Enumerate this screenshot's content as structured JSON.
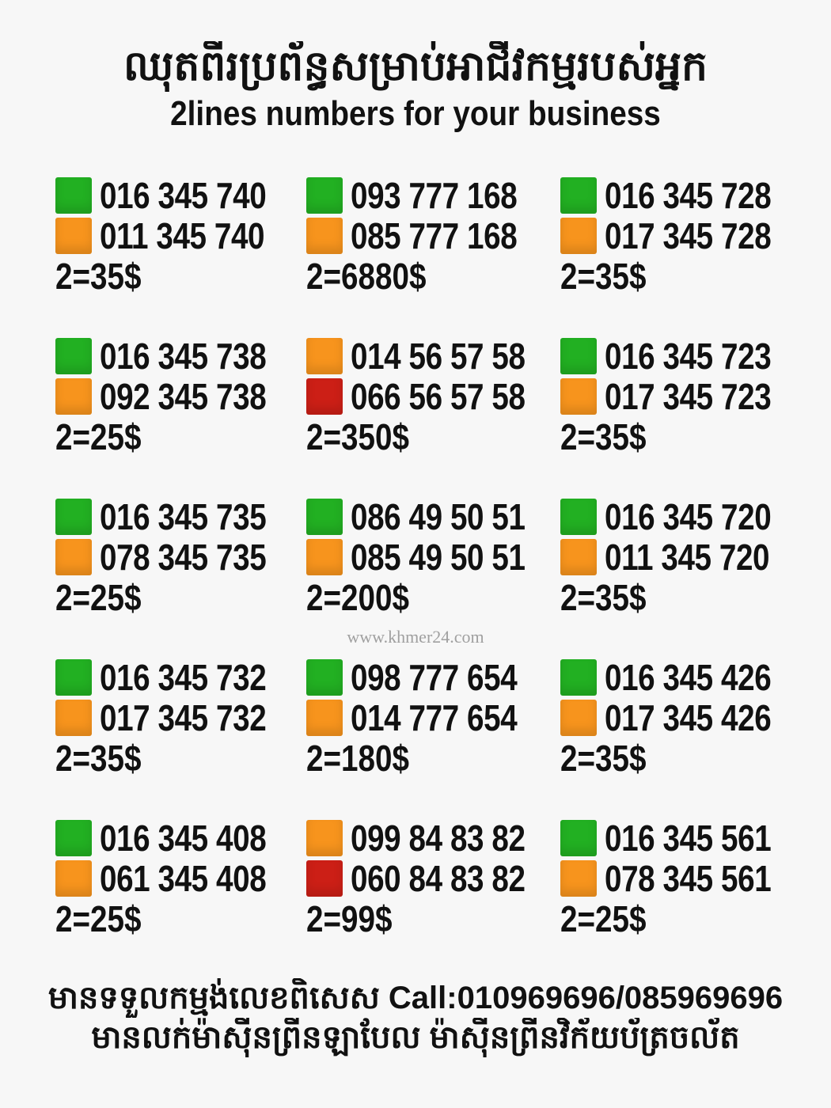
{
  "header": {
    "title_khmer": "ឈុតពីរប្រព័ន្ធសម្រាប់អាជីវកម្មរបស់អ្នក",
    "title_english": "2lines numbers for your business"
  },
  "colors": {
    "green": "#22b022",
    "orange": "#f7941d",
    "red": "#cc1f16"
  },
  "blocks": [
    {
      "lines": [
        {
          "color": "green",
          "number": "016 345 740"
        },
        {
          "color": "orange",
          "number": "011 345 740"
        }
      ],
      "price": "2=35$"
    },
    {
      "lines": [
        {
          "color": "green",
          "number": "093 777 168"
        },
        {
          "color": "orange",
          "number": "085 777 168"
        }
      ],
      "price": "2=6880$"
    },
    {
      "lines": [
        {
          "color": "green",
          "number": "016 345 728"
        },
        {
          "color": "orange",
          "number": "017 345 728"
        }
      ],
      "price": "2=35$"
    },
    {
      "lines": [
        {
          "color": "green",
          "number": "016 345 738"
        },
        {
          "color": "orange",
          "number": "092 345 738"
        }
      ],
      "price": "2=25$"
    },
    {
      "lines": [
        {
          "color": "orange",
          "number": "014 56 57 58"
        },
        {
          "color": "red",
          "number": "066 56 57 58"
        }
      ],
      "price": "2=350$"
    },
    {
      "lines": [
        {
          "color": "green",
          "number": "016 345 723"
        },
        {
          "color": "orange",
          "number": "017 345 723"
        }
      ],
      "price": "2=35$"
    },
    {
      "lines": [
        {
          "color": "green",
          "number": "016 345 735"
        },
        {
          "color": "orange",
          "number": "078 345 735"
        }
      ],
      "price": "2=25$"
    },
    {
      "lines": [
        {
          "color": "green",
          "number": "086 49 50 51"
        },
        {
          "color": "orange",
          "number": "085 49 50 51"
        }
      ],
      "price": "2=200$"
    },
    {
      "lines": [
        {
          "color": "green",
          "number": "016 345 720"
        },
        {
          "color": "orange",
          "number": "011 345 720"
        }
      ],
      "price": "2=35$"
    },
    {
      "lines": [
        {
          "color": "green",
          "number": "016 345 732"
        },
        {
          "color": "orange",
          "number": "017 345 732"
        }
      ],
      "price": "2=35$"
    },
    {
      "lines": [
        {
          "color": "green",
          "number": "098 777 654"
        },
        {
          "color": "orange",
          "number": "014 777 654"
        }
      ],
      "price": "2=180$"
    },
    {
      "lines": [
        {
          "color": "green",
          "number": "016 345 426"
        },
        {
          "color": "orange",
          "number": "017 345 426"
        }
      ],
      "price": "2=35$"
    },
    {
      "lines": [
        {
          "color": "green",
          "number": "016 345 408"
        },
        {
          "color": "orange",
          "number": "061 345 408"
        }
      ],
      "price": "2=25$"
    },
    {
      "lines": [
        {
          "color": "orange",
          "number": "099 84 83 82"
        },
        {
          "color": "red",
          "number": "060 84 83 82"
        }
      ],
      "price": "2=99$"
    },
    {
      "lines": [
        {
          "color": "green",
          "number": "016 345 561"
        },
        {
          "color": "orange",
          "number": "078 345 561"
        }
      ],
      "price": "2=25$"
    }
  ],
  "watermark": "www.khmer24.com",
  "footer": {
    "line1": "មានទទួលកម្មង់លេខពិសេស Call:010969696/085969696",
    "line2": "មានលក់ម៉ាស៊ីនព្រីនឡាបែល ម៉ាស៊ីនព្រីនវិក័យប័ត្រចល័ត"
  }
}
